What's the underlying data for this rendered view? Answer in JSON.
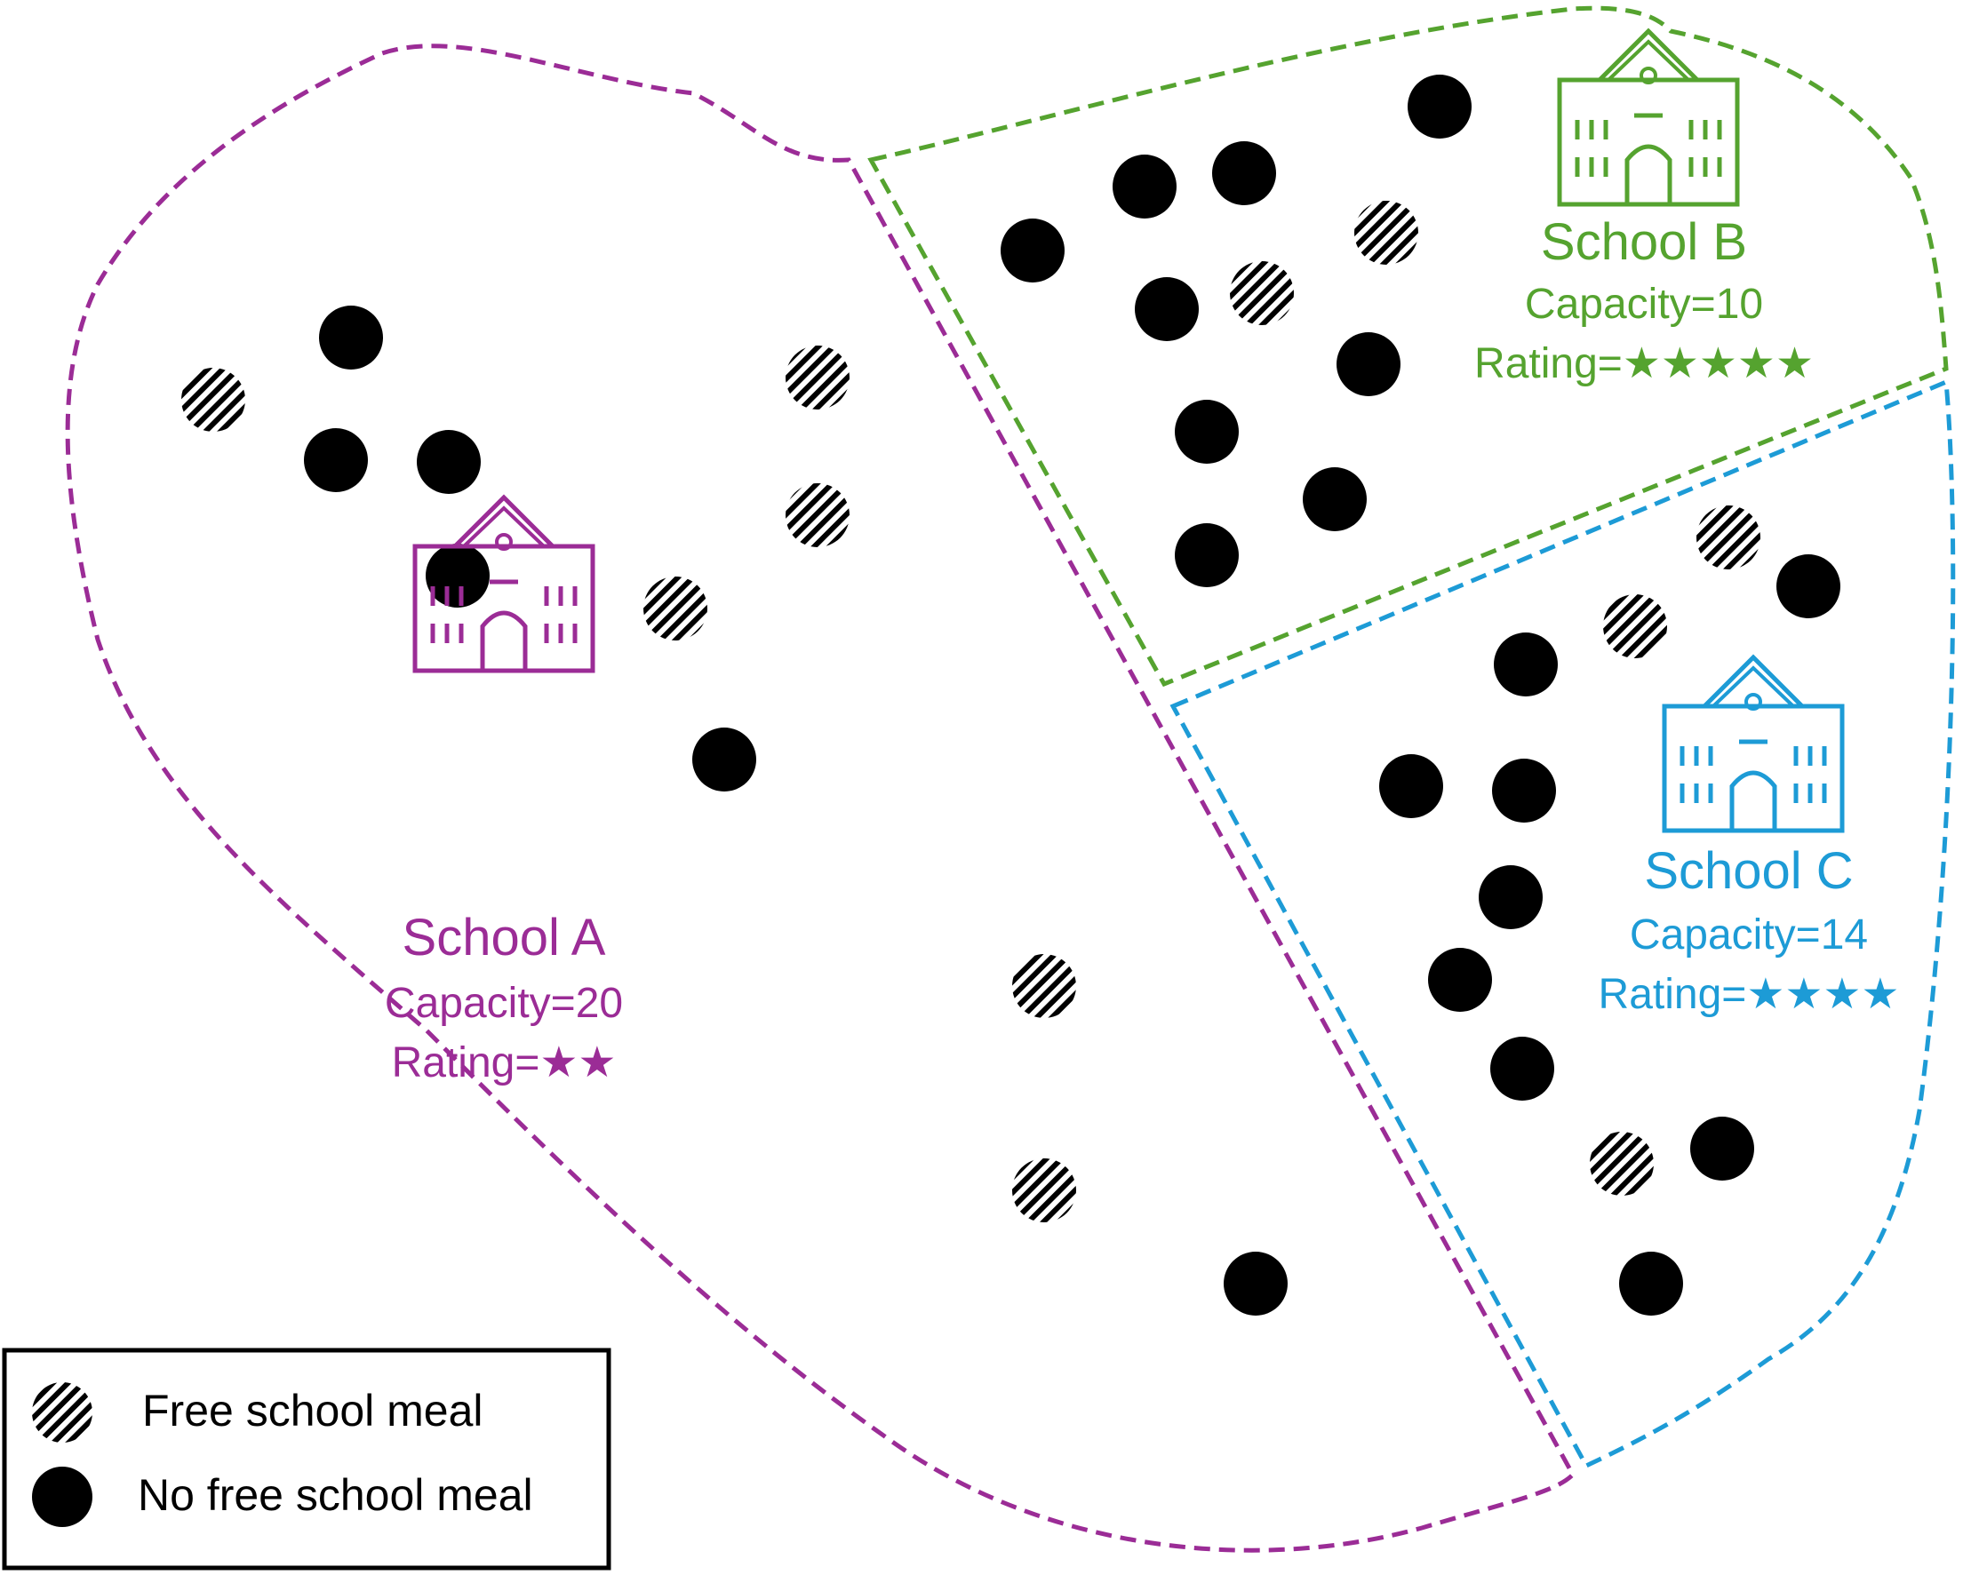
{
  "colors": {
    "school_a": "#9b2c96",
    "school_b": "#55a32f",
    "school_c": "#1d9bd6",
    "pupil": "#000000"
  },
  "schools": [
    {
      "key": "a",
      "name": "School A",
      "capacity_label": "Capacity=20",
      "rating_label": "Rating=★★",
      "rating": 2
    },
    {
      "key": "b",
      "name": "School B",
      "capacity_label": "Capacity=10",
      "rating_label": "Rating=★★★★★",
      "rating": 5
    },
    {
      "key": "c",
      "name": "School C",
      "capacity_label": "Capacity=14",
      "rating_label": "Rating=★★★★",
      "rating": 4
    }
  ],
  "legend": {
    "free_label": "Free school meal",
    "no_free_label": "No free school meal"
  },
  "icon": "school-building-icon"
}
